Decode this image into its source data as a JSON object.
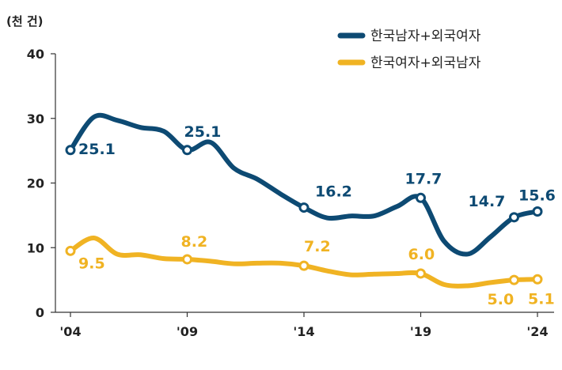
{
  "chart_data": {
    "type": "line",
    "unit_label": "(천 건)",
    "x": [
      2004,
      2005,
      2006,
      2007,
      2008,
      2009,
      2010,
      2011,
      2012,
      2013,
      2014,
      2015,
      2016,
      2017,
      2018,
      2019,
      2020,
      2021,
      2022,
      2023,
      2024
    ],
    "x_tick_labels": [
      "'04",
      "'09",
      "'14",
      "'19",
      "'24"
    ],
    "x_tick_values": [
      2004,
      2009,
      2014,
      2019,
      2024
    ],
    "ylim": [
      0,
      40
    ],
    "y_ticks": [
      0,
      10,
      20,
      30,
      40
    ],
    "grid": false,
    "legend_position": "top-right",
    "series": [
      {
        "name": "한국남자+외국여자",
        "color": "#0d4a73",
        "values": [
          25.1,
          30.2,
          29.7,
          28.6,
          28.0,
          25.1,
          26.3,
          22.3,
          20.6,
          18.3,
          16.2,
          14.6,
          14.9,
          14.9,
          16.4,
          17.7,
          11.0,
          9.0,
          11.7,
          14.7,
          15.6
        ],
        "labeled_points": [
          {
            "x": 2004,
            "label": "25.1"
          },
          {
            "x": 2009,
            "label": "25.1"
          },
          {
            "x": 2014,
            "label": "16.2"
          },
          {
            "x": 2019,
            "label": "17.7"
          },
          {
            "x": 2023,
            "label": "14.7"
          },
          {
            "x": 2024,
            "label": "15.6"
          }
        ]
      },
      {
        "name": "한국여자+외국남자",
        "color": "#f0b323",
        "values": [
          9.5,
          11.5,
          9.0,
          8.9,
          8.3,
          8.2,
          7.9,
          7.5,
          7.6,
          7.6,
          7.2,
          6.4,
          5.8,
          5.9,
          6.0,
          6.0,
          4.3,
          4.1,
          4.6,
          5.0,
          5.1
        ],
        "labeled_points": [
          {
            "x": 2004,
            "label": "9.5"
          },
          {
            "x": 2009,
            "label": "8.2"
          },
          {
            "x": 2014,
            "label": "7.2"
          },
          {
            "x": 2019,
            "label": "6.0"
          },
          {
            "x": 2023,
            "label": "5.0"
          },
          {
            "x": 2024,
            "label": "5.1"
          }
        ]
      }
    ]
  }
}
